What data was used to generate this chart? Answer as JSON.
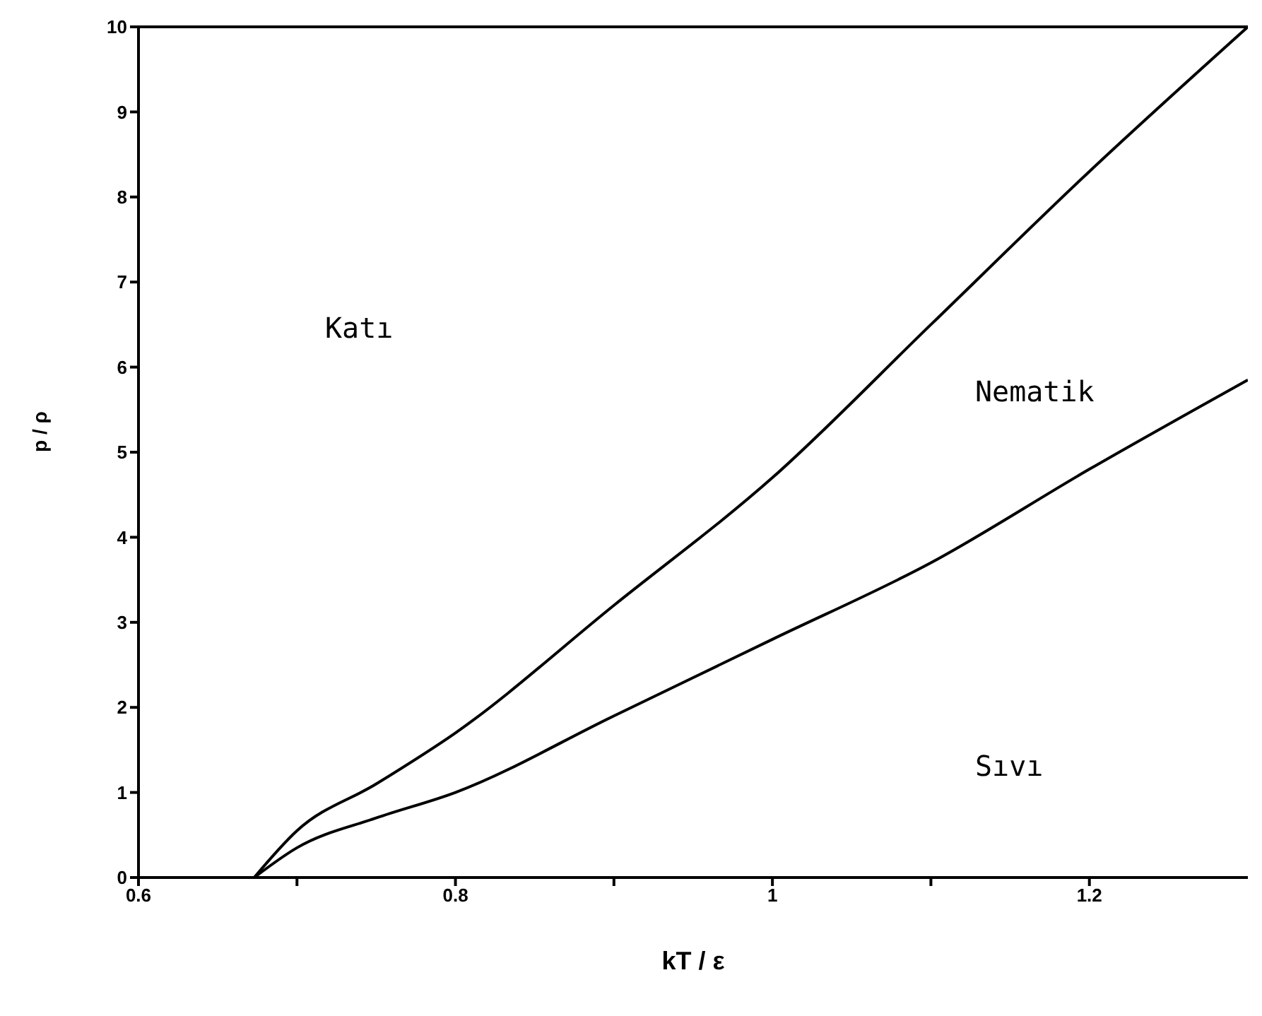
{
  "chart_data": {
    "type": "line",
    "xlabel": "kT / ε",
    "ylabel": "p / ρ",
    "xlim": [
      0.6,
      1.3
    ],
    "ylim": [
      0,
      10
    ],
    "xticks": [
      0.6,
      {
        "value": 0.7,
        "label": null
      },
      0.8,
      {
        "value": 0.9,
        "label": null
      },
      1,
      {
        "value": 1.1,
        "label": null
      },
      1.2
    ],
    "yticks": [
      0,
      1,
      2,
      3,
      4,
      5,
      6,
      7,
      8,
      9,
      10
    ],
    "series": [
      {
        "color": "#000000",
        "x": [
          0.673,
          0.7,
          0.75,
          0.8,
          0.9,
          1.0,
          1.1,
          1.2,
          1.3
        ],
        "values": [
          0,
          0.55,
          1.1,
          1.7,
          3.2,
          4.7,
          6.5,
          8.3,
          10
        ]
      },
      {
        "color": "#000000",
        "x": [
          0.673,
          0.7,
          0.75,
          0.8,
          0.9,
          1.0,
          1.1,
          1.2,
          1.3
        ],
        "values": [
          0,
          0.35,
          0.7,
          1.0,
          1.9,
          2.8,
          3.7,
          4.8,
          5.85
        ]
      }
    ],
    "annotations": [
      "Katı",
      "Nematik",
      "Sıvı"
    ],
    "grid": false,
    "marker": "none",
    "line_style": "solid"
  }
}
